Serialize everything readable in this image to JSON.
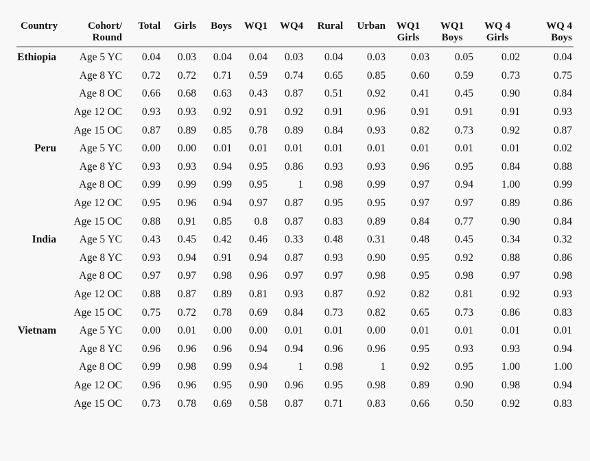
{
  "table": {
    "headers": [
      {
        "line1": "Country",
        "line2": ""
      },
      {
        "line1": "Cohort/",
        "line2": "Round"
      },
      {
        "line1": "Total",
        "line2": ""
      },
      {
        "line1": "Girls",
        "line2": ""
      },
      {
        "line1": "Boys",
        "line2": ""
      },
      {
        "line1": "WQ1",
        "line2": ""
      },
      {
        "line1": "WQ4",
        "line2": ""
      },
      {
        "line1": "Rural",
        "line2": ""
      },
      {
        "line1": "Urban",
        "line2": ""
      },
      {
        "line1": "WQ1",
        "line2": "Girls"
      },
      {
        "line1": "WQ1",
        "line2": "Boys"
      },
      {
        "line1": "WQ 4",
        "line2": "Girls"
      },
      {
        "line1": "WQ 4",
        "line2": "Boys"
      }
    ],
    "rows": [
      {
        "country": "Ethiopia",
        "cohort": "Age 5 YC",
        "values": [
          "0.04",
          "0.03",
          "0.04",
          "0.04",
          "0.03",
          "0.04",
          "0.03",
          "0.03",
          "0.05",
          "0.02",
          "0.04"
        ]
      },
      {
        "country": "",
        "cohort": "Age 8 YC",
        "values": [
          "0.72",
          "0.72",
          "0.71",
          "0.59",
          "0.74",
          "0.65",
          "0.85",
          "0.60",
          "0.59",
          "0.73",
          "0.75"
        ]
      },
      {
        "country": "",
        "cohort": "Age 8 OC",
        "values": [
          "0.66",
          "0.68",
          "0.63",
          "0.43",
          "0.87",
          "0.51",
          "0.92",
          "0.41",
          "0.45",
          "0.90",
          "0.84"
        ]
      },
      {
        "country": "",
        "cohort": "Age 12 OC",
        "values": [
          "0.93",
          "0.93",
          "0.92",
          "0.91",
          "0.92",
          "0.91",
          "0.96",
          "0.91",
          "0.91",
          "0.91",
          "0.93"
        ]
      },
      {
        "country": "",
        "cohort": "Age 15 OC",
        "values": [
          "0.87",
          "0.89",
          "0.85",
          "0.78",
          "0.89",
          "0.84",
          "0.93",
          "0.82",
          "0.73",
          "0.92",
          "0.87"
        ]
      },
      {
        "country": "Peru",
        "cohort": "Age 5 YC",
        "values": [
          "0.00",
          "0.00",
          "0.01",
          "0.01",
          "0.01",
          "0.01",
          "0.01",
          "0.01",
          "0.01",
          "0.01",
          "0.02"
        ]
      },
      {
        "country": "",
        "cohort": "Age 8 YC",
        "values": [
          "0.93",
          "0.93",
          "0.94",
          "0.95",
          "0.86",
          "0.93",
          "0.93",
          "0.96",
          "0.95",
          "0.84",
          "0.88"
        ]
      },
      {
        "country": "",
        "cohort": "Age 8 OC",
        "values": [
          "0.99",
          "0.99",
          "0.99",
          "0.95",
          "1",
          "0.98",
          "0.99",
          "0.97",
          "0.94",
          "1.00",
          "0.99"
        ]
      },
      {
        "country": "",
        "cohort": "Age 12 OC",
        "values": [
          "0.95",
          "0.96",
          "0.94",
          "0.97",
          "0.87",
          "0.95",
          "0.95",
          "0.97",
          "0.97",
          "0.89",
          "0.86"
        ]
      },
      {
        "country": "",
        "cohort": "Age 15 OC",
        "values": [
          "0.88",
          "0.91",
          "0.85",
          "0.8",
          "0.87",
          "0.83",
          "0.89",
          "0.84",
          "0.77",
          "0.90",
          "0.84"
        ]
      },
      {
        "country": "India",
        "cohort": "Age 5 YC",
        "values": [
          "0.43",
          "0.45",
          "0.42",
          "0.46",
          "0.33",
          "0.48",
          "0.31",
          "0.48",
          "0.45",
          "0.34",
          "0.32"
        ]
      },
      {
        "country": "",
        "cohort": "Age 8 YC",
        "values": [
          "0.93",
          "0.94",
          "0.91",
          "0.94",
          "0.87",
          "0.93",
          "0.90",
          "0.95",
          "0.92",
          "0.88",
          "0.86"
        ]
      },
      {
        "country": "",
        "cohort": "Age 8 OC",
        "values": [
          "0.97",
          "0.97",
          "0.98",
          "0.96",
          "0.97",
          "0.97",
          "0.98",
          "0.95",
          "0.98",
          "0.97",
          "0.98"
        ]
      },
      {
        "country": "",
        "cohort": "Age 12 OC",
        "values": [
          "0.88",
          "0.87",
          "0.89",
          "0.81",
          "0.93",
          "0.87",
          "0.92",
          "0.82",
          "0.81",
          "0.92",
          "0.93"
        ]
      },
      {
        "country": "",
        "cohort": "Age 15 OC",
        "values": [
          "0.75",
          "0.72",
          "0.78",
          "0.69",
          "0.84",
          "0.73",
          "0.82",
          "0.65",
          "0.73",
          "0.86",
          "0.83"
        ]
      },
      {
        "country": "Vietnam",
        "cohort": "Age 5 YC",
        "values": [
          "0.00",
          "0.01",
          "0.00",
          "0.00",
          "0.01",
          "0.01",
          "0.00",
          "0.01",
          "0.01",
          "0.01",
          "0.01"
        ]
      },
      {
        "country": "",
        "cohort": "Age 8 YC",
        "values": [
          "0.96",
          "0.96",
          "0.96",
          "0.94",
          "0.94",
          "0.96",
          "0.96",
          "0.95",
          "0.93",
          "0.93",
          "0.94"
        ]
      },
      {
        "country": "",
        "cohort": "Age 8 OC",
        "values": [
          "0.99",
          "0.98",
          "0.99",
          "0.94",
          "1",
          "0.98",
          "1",
          "0.92",
          "0.95",
          "1.00",
          "1.00"
        ]
      },
      {
        "country": "",
        "cohort": "Age 12 OC",
        "values": [
          "0.96",
          "0.96",
          "0.95",
          "0.90",
          "0.96",
          "0.95",
          "0.98",
          "0.89",
          "0.90",
          "0.98",
          "0.94"
        ]
      },
      {
        "country": "",
        "cohort": "Age 15 OC",
        "values": [
          "0.73",
          "0.78",
          "0.69",
          "0.58",
          "0.87",
          "0.71",
          "0.83",
          "0.66",
          "0.50",
          "0.92",
          "0.83"
        ]
      }
    ]
  }
}
